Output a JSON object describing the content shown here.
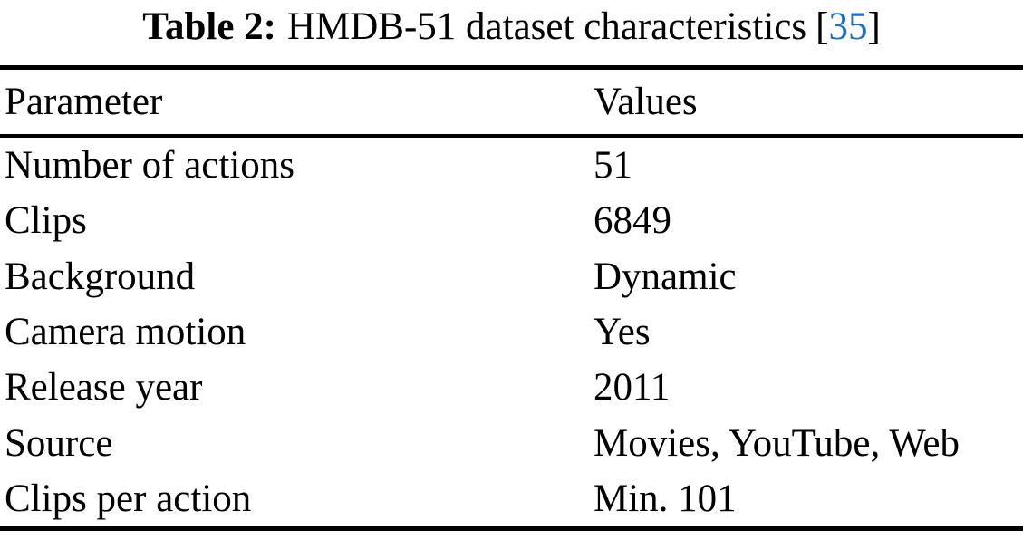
{
  "caption": {
    "label": "Table 2:",
    "title": "HMDB-51 dataset characteristics",
    "citation": {
      "open": "[",
      "number": "35",
      "close": "]"
    }
  },
  "table": {
    "columns": [
      "Parameter",
      "Values"
    ],
    "rows": [
      {
        "parameter": "Number of actions",
        "value": "51"
      },
      {
        "parameter": "Clips",
        "value": "6849"
      },
      {
        "parameter": "Background",
        "value": "Dynamic"
      },
      {
        "parameter": "Camera motion",
        "value": "Yes"
      },
      {
        "parameter": "Release year",
        "value": "2011"
      },
      {
        "parameter": "Source",
        "value": "Movies, YouTube, Web"
      },
      {
        "parameter": "Clips per action",
        "value": "Min. 101"
      }
    ]
  },
  "colors": {
    "citation_blue": "#1f6fc5",
    "text": "#000000",
    "background": "#ffffff"
  }
}
